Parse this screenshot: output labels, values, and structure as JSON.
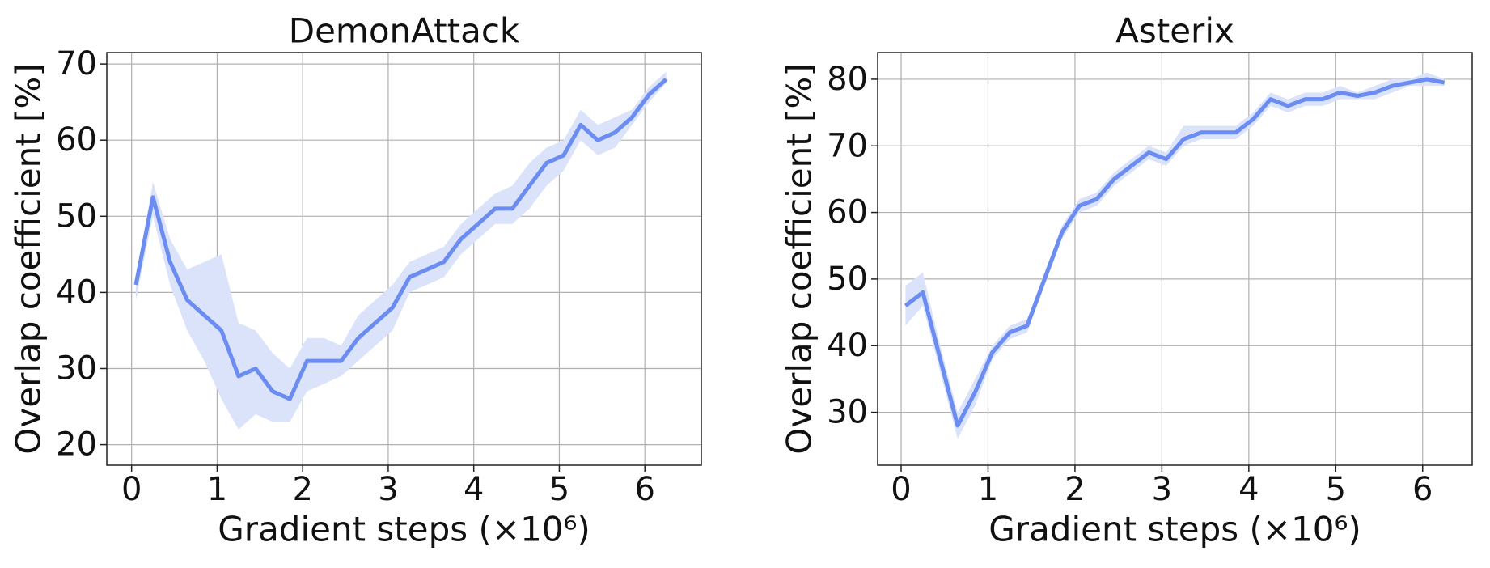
{
  "chart_data": [
    {
      "type": "line",
      "title": "DemonAttack",
      "xlabel": "Gradient steps (×10⁶)",
      "ylabel": "Overlap coefficient [%]",
      "color": "#6b8cf0",
      "band_color": "#dbe3fb",
      "grid": true,
      "xlim": [
        -0.29,
        6.66
      ],
      "xticks": [
        0,
        1,
        2,
        3,
        4,
        5,
        6
      ],
      "ylim": [
        17.3,
        71.5
      ],
      "yticks": [
        20,
        30,
        40,
        50,
        60,
        70
      ],
      "x": [
        0.05,
        0.25,
        0.45,
        0.65,
        0.85,
        1.05,
        1.25,
        1.45,
        1.65,
        1.85,
        2.05,
        2.25,
        2.45,
        2.65,
        2.85,
        3.05,
        3.25,
        3.45,
        3.65,
        3.85,
        4.05,
        4.25,
        4.45,
        4.65,
        4.85,
        5.05,
        5.25,
        5.45,
        5.65,
        5.85,
        6.05,
        6.25
      ],
      "values": [
        41,
        52.5,
        44,
        39,
        37,
        35,
        29,
        30,
        27,
        26,
        31,
        31,
        31,
        34,
        36,
        38,
        42,
        43,
        44,
        47,
        49,
        51,
        51,
        54,
        57,
        58,
        62,
        60,
        61,
        63,
        66,
        68
      ],
      "lower": [
        39,
        50,
        41,
        35,
        31,
        26,
        22,
        24,
        23,
        23,
        27,
        28,
        29,
        31,
        33,
        35,
        40,
        41,
        42,
        45,
        47,
        49,
        49,
        51,
        54,
        56,
        60,
        58,
        59,
        62,
        65,
        67.5
      ],
      "upper": [
        42,
        54.5,
        47,
        43,
        44,
        45,
        36,
        35,
        32,
        30,
        34,
        34,
        33,
        37,
        39,
        41,
        44,
        45,
        46,
        49,
        51,
        53,
        54,
        57,
        59,
        60,
        64,
        62,
        63,
        64,
        67,
        69
      ]
    },
    {
      "type": "line",
      "title": "Asterix",
      "xlabel": "Gradient steps (×10⁶)",
      "ylabel": "Overlap coefficient [%]",
      "color": "#6b8cf0",
      "band_color": "#dbe3fb",
      "grid": true,
      "xlim": [
        -0.27,
        6.57
      ],
      "xticks": [
        0,
        1,
        2,
        3,
        4,
        5,
        6
      ],
      "ylim": [
        22.05,
        84.0
      ],
      "yticks": [
        30,
        40,
        50,
        60,
        70,
        80
      ],
      "x": [
        0.05,
        0.25,
        0.45,
        0.65,
        0.85,
        1.05,
        1.25,
        1.45,
        1.65,
        1.85,
        2.05,
        2.25,
        2.45,
        2.65,
        2.85,
        3.05,
        3.25,
        3.45,
        3.65,
        3.85,
        4.05,
        4.25,
        4.45,
        4.65,
        4.85,
        5.05,
        5.25,
        5.45,
        5.65,
        5.85,
        6.05,
        6.25
      ],
      "values": [
        46,
        48,
        38,
        28,
        33,
        39,
        42,
        43,
        50,
        57,
        61,
        62,
        65,
        67,
        69,
        68,
        71,
        72,
        72,
        72,
        74,
        77,
        76,
        77,
        77,
        78,
        77.5,
        78,
        79,
        79.5,
        80,
        79.5
      ],
      "lower": [
        43,
        46,
        36,
        26,
        31,
        38,
        41,
        42,
        49,
        56,
        60,
        61,
        64,
        66,
        68,
        67,
        70,
        71,
        71,
        71,
        73,
        76,
        75,
        76,
        76,
        77,
        77,
        77,
        78,
        79,
        79,
        79
      ],
      "upper": [
        49,
        51,
        40,
        30,
        35,
        40,
        43,
        44,
        51,
        58,
        62,
        63,
        66,
        68,
        70,
        69,
        73,
        73,
        73,
        73,
        75,
        78,
        77,
        78,
        78,
        79,
        78,
        79,
        80,
        80,
        81,
        80
      ]
    }
  ]
}
